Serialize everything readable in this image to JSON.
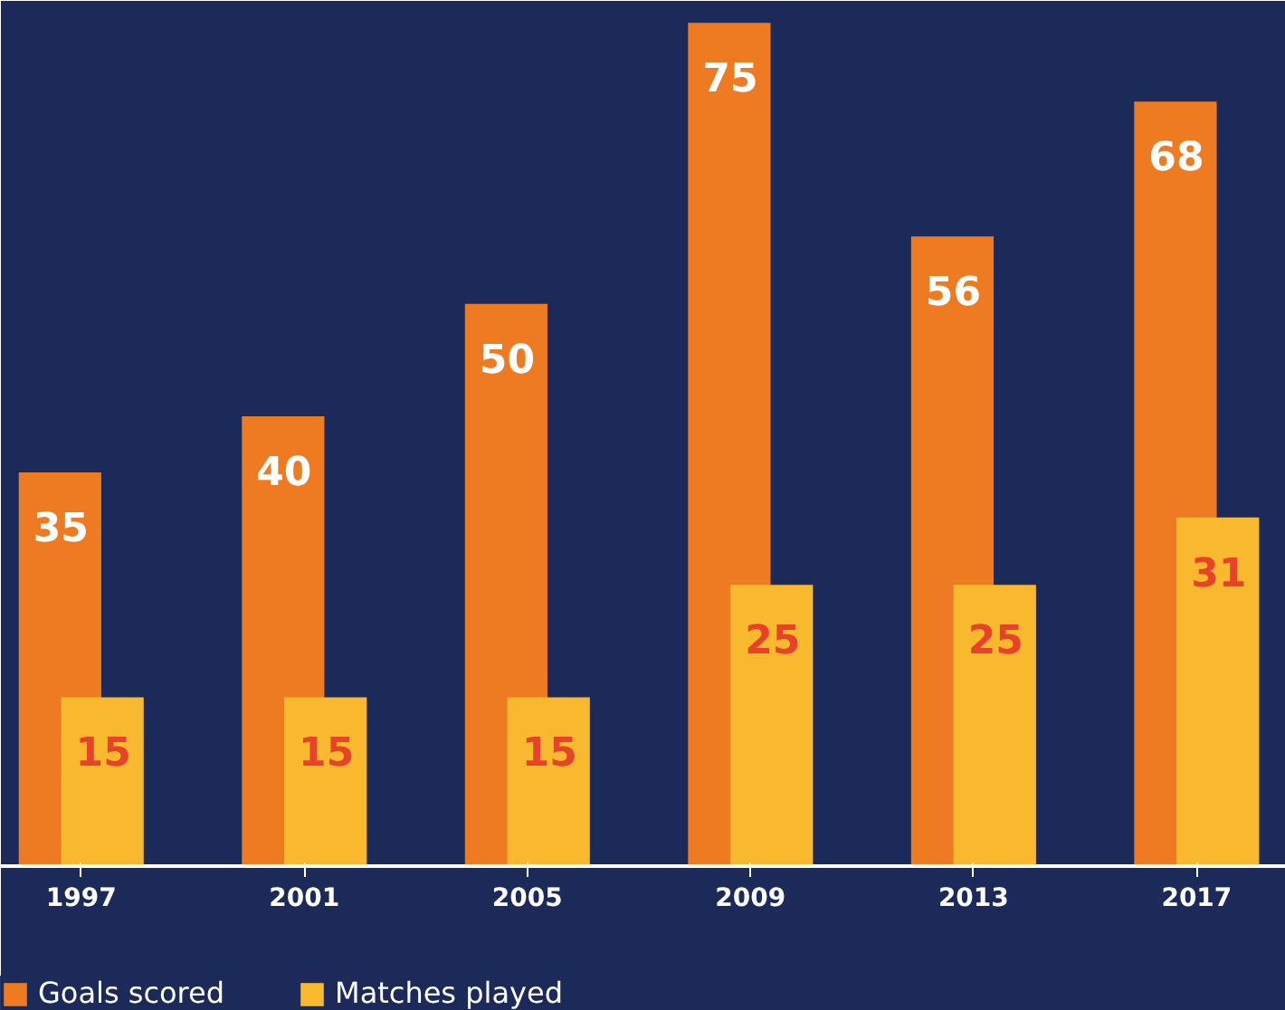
{
  "chart_data": {
    "type": "bar",
    "categories": [
      "1997",
      "2001",
      "2005",
      "2009",
      "2013",
      "2017"
    ],
    "series": [
      {
        "name": "Goals scored",
        "color": "#ee7a22",
        "values": [
          35,
          40,
          50,
          75,
          56,
          68
        ]
      },
      {
        "name": "Matches played",
        "color": "#f8b92f",
        "values": [
          15,
          15,
          15,
          25,
          25,
          31
        ]
      }
    ],
    "data_labels": true,
    "legend": "bottom left",
    "grid": false
  }
}
